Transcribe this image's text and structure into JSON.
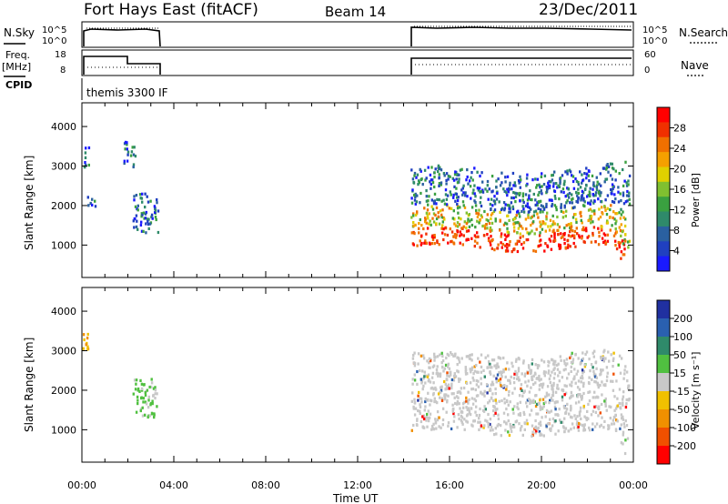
{
  "header": {
    "title": "Fort Hays East (fitACF)",
    "beam": "Beam 14",
    "date": "23/Dec/2011"
  },
  "left_labels": {
    "nsky": "N.Sky",
    "freq": "Freq.",
    "mhz": "[MHz]",
    "cpid": "CPID"
  },
  "right_labels": {
    "nsearch": "N.Search",
    "nave": "Nave"
  },
  "noise_axis": {
    "top": "10^5",
    "bottom": "10^0"
  },
  "freq_axis": {
    "top": "18",
    "bottom": "8"
  },
  "nave_axis": {
    "top": "60",
    "bottom": "0"
  },
  "cpid_text": "themis 3300 IF",
  "panels": {
    "ylabel": "Slant Range [km]",
    "xlabel": "Time UT",
    "y_ticks": [
      "1000",
      "2000",
      "3000",
      "4000"
    ],
    "x_ticks": [
      "00:00",
      "04:00",
      "08:00",
      "12:00",
      "16:00",
      "20:00",
      "00:00"
    ]
  },
  "power_scale": {
    "label": "Power [dB]",
    "ticks": [
      "4",
      "8",
      "12",
      "16",
      "20",
      "24",
      "28"
    ],
    "colors": [
      "#1a1aff",
      "#2040c0",
      "#2a60a0",
      "#2f8a6a",
      "#3aa040",
      "#80c030",
      "#e0d000",
      "#f5a000",
      "#f07000",
      "#f03000",
      "#ff0000"
    ]
  },
  "velocity_scale": {
    "label": "Velocity [m s⁻¹]",
    "ticks": [
      "200",
      "100",
      "50",
      "15",
      "-15",
      "-50",
      "-100",
      "-200"
    ],
    "colors": [
      "#2030a0",
      "#2a60b0",
      "#2f8a6a",
      "#50c040",
      "#c8c8c8",
      "#f0c000",
      "#f09000",
      "#f05000",
      "#ff0000"
    ]
  },
  "chart_data": {
    "type": "heatmap",
    "x_range_hours": [
      0,
      24
    ],
    "y_range_km": [
      180,
      4600
    ],
    "power_regions": [
      {
        "t_start": 0.0,
        "t_end": 0.3,
        "r_start": 2900,
        "r_end": 3500,
        "level": "low"
      },
      {
        "t_start": 0.2,
        "t_end": 0.7,
        "r_start": 1950,
        "r_end": 2200,
        "level": "low"
      },
      {
        "t_start": 1.8,
        "t_end": 2.3,
        "r_start": 2900,
        "r_end": 3600,
        "level": "low"
      },
      {
        "t_start": 2.2,
        "t_end": 3.3,
        "r_start": 1300,
        "r_end": 2300,
        "level": "low"
      },
      {
        "t_start": 14.3,
        "t_end": 23.8,
        "r_start": 900,
        "r_end": 1350,
        "level": "high"
      },
      {
        "t_start": 14.3,
        "t_end": 23.8,
        "r_start": 1350,
        "r_end": 1900,
        "level": "mid"
      },
      {
        "t_start": 14.3,
        "t_end": 23.8,
        "r_start": 1900,
        "r_end": 2900,
        "level": "low"
      }
    ],
    "velocity_regions": [
      {
        "t_start": 0.0,
        "t_end": 0.3,
        "r_start": 2900,
        "r_end": 3500,
        "level": "slight-neg"
      },
      {
        "t_start": 2.2,
        "t_end": 3.3,
        "r_start": 1300,
        "r_end": 2300,
        "level": "pos"
      },
      {
        "t_start": 14.3,
        "t_end": 23.8,
        "r_start": 900,
        "r_end": 2900,
        "level": "ground"
      }
    ],
    "freq_mhz": [
      {
        "t_start": 0.0,
        "t_end": 1.8,
        "value": 16
      },
      {
        "t_start": 1.8,
        "t_end": 3.3,
        "value": 11
      },
      {
        "t_start": 14.3,
        "t_end": 24.0,
        "value": 15
      }
    ]
  }
}
